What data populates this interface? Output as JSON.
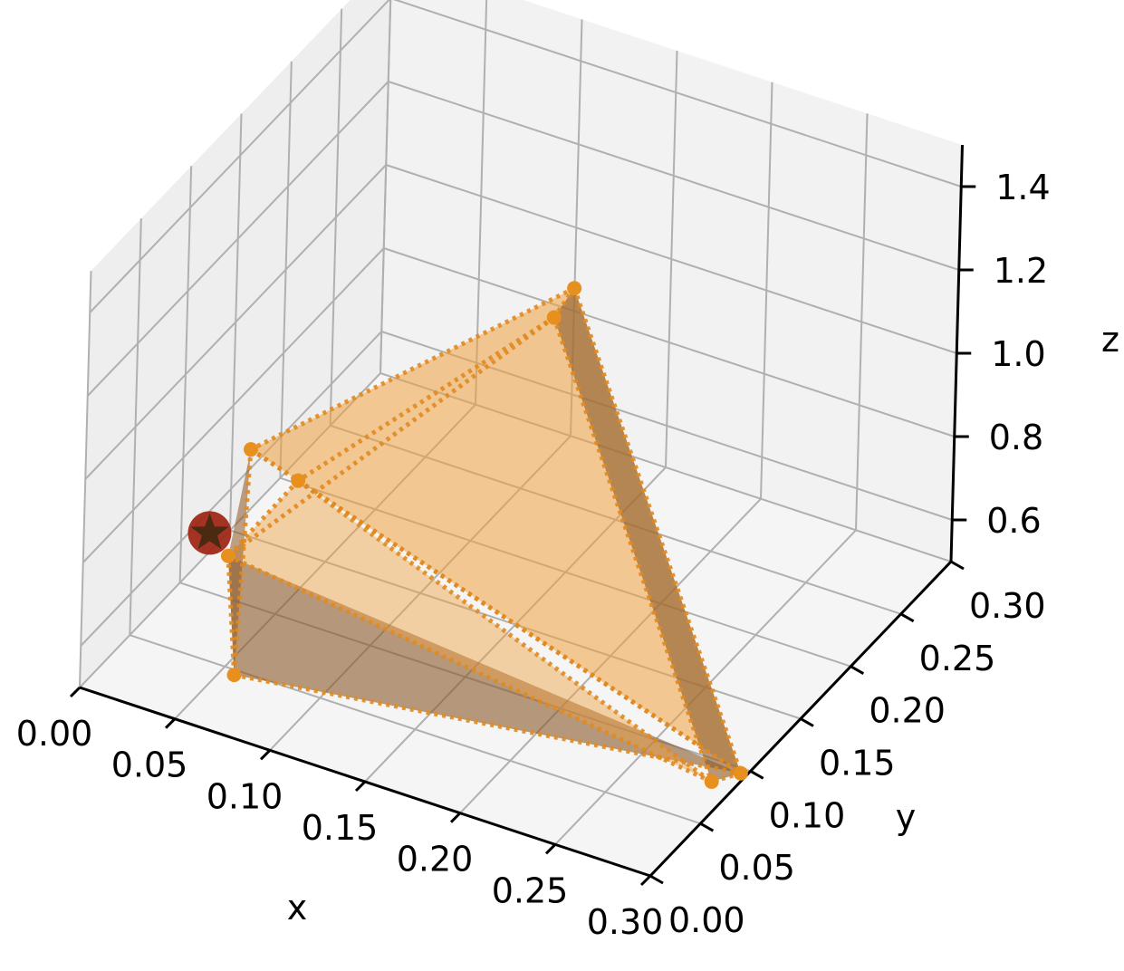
{
  "chart_data": {
    "type": "3d-polyhedron",
    "title": "",
    "axes": {
      "x": {
        "label": "x",
        "range": [
          0.0,
          0.3
        ],
        "ticks": [
          "0.00",
          "0.05",
          "0.10",
          "0.15",
          "0.20",
          "0.25",
          "0.30"
        ]
      },
      "y": {
        "label": "y",
        "range": [
          0.0,
          0.3
        ],
        "ticks": [
          "0.00",
          "0.05",
          "0.10",
          "0.15",
          "0.20",
          "0.25",
          "0.30"
        ]
      },
      "z": {
        "label": "z",
        "range": [
          0.5,
          1.5
        ],
        "ticks": [
          "0.6",
          "0.8",
          "1.0",
          "1.2",
          "1.4"
        ]
      }
    },
    "grid": true,
    "colors": {
      "face_light": "#f0a040",
      "face_dark": "#8a5a2a",
      "edge": "#e08a20",
      "vertex": "#e8901e",
      "marker_circle": "#a02818",
      "marker_star": "#4a2a10",
      "pane": "#f2f2f2",
      "grid": "#b0b0b0"
    },
    "vertices": [
      {
        "x": 0.11,
        "y": 0.28,
        "z": 0.92
      },
      {
        "x": 0.11,
        "y": 0.26,
        "z": 0.9
      },
      {
        "x": 0.03,
        "y": 0.11,
        "z": 0.84
      },
      {
        "x": 0.05,
        "y": 0.12,
        "z": 0.77
      },
      {
        "x": 0.04,
        "y": 0.07,
        "z": 0.7
      },
      {
        "x": 0.06,
        "y": 0.04,
        "z": 0.52
      },
      {
        "x": 0.3,
        "y": 0.09,
        "z": 0.52
      },
      {
        "x": 0.29,
        "y": 0.08,
        "z": 0.51
      }
    ],
    "marker": {
      "shape": "star-in-circle",
      "x": 0.03,
      "y": 0.07,
      "z": 0.74
    }
  }
}
